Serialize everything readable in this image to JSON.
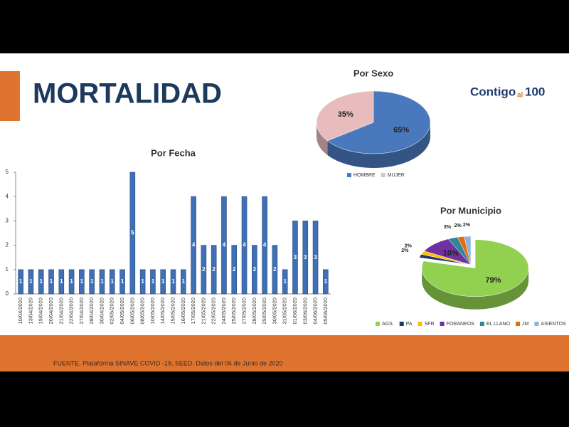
{
  "header": {
    "title": "MORTALIDAD"
  },
  "logo": {
    "word": "Contigo",
    "small": "al",
    "number": "100"
  },
  "footer": {
    "source": "FUENTE. Plataforma SINAVE COVID -19, SEED. Datos del 06 de Junio de 2020"
  },
  "chart_data": [
    {
      "type": "bar",
      "title": "Por Fecha",
      "categories": [
        "10/04/2020",
        "13/04/2020",
        "19/04/2020",
        "20/04/2020",
        "21/04/2020",
        "22/04/2020",
        "27/04/2020",
        "28/04/2020",
        "30/04/2020",
        "02/05/2020",
        "04/05/2020",
        "06/05/2020",
        "08/05/2020",
        "10/05/2020",
        "14/05/2020",
        "15/05/2020",
        "16/05/2020",
        "17/05/2020",
        "21/05/2020",
        "22/05/2020",
        "24/05/2020",
        "25/05/2020",
        "27/05/2020",
        "28/05/2020",
        "29/05/2020",
        "30/05/2020",
        "31/05/2020",
        "01/06/2020",
        "03/06/2020",
        "04/06/2020",
        "05/06/2020"
      ],
      "values": [
        1,
        1,
        1,
        1,
        1,
        1,
        1,
        1,
        1,
        1,
        1,
        5,
        1,
        1,
        1,
        1,
        1,
        4,
        2,
        2,
        4,
        2,
        4,
        2,
        4,
        2,
        1,
        3,
        3,
        3,
        1
      ],
      "color": "#3f6fb5",
      "ylim": [
        0,
        5
      ],
      "yticks": [
        0,
        1,
        2,
        3,
        4,
        5
      ],
      "grid": false
    },
    {
      "type": "pie",
      "title": "Por Sexo",
      "categories": [
        "HOMBRE",
        "MUJER"
      ],
      "values": [
        65,
        35
      ],
      "value_labels": [
        "65%",
        "35%"
      ],
      "colors": [
        "#4a78bd",
        "#e8bcbc"
      ]
    },
    {
      "type": "pie",
      "title": "Por Municipio",
      "categories": [
        "AGS.",
        "PA",
        "SFR",
        "FORANEOS",
        "EL LLANO",
        "JM",
        "ASIENTOS"
      ],
      "values": [
        79,
        2,
        2,
        10,
        3,
        2,
        2
      ],
      "value_labels": [
        "79%",
        "2%",
        "2%",
        "10%",
        "3%",
        "2%",
        "2%"
      ],
      "colors": [
        "#92d050",
        "#1f3864",
        "#ffc000",
        "#7030a0",
        "#31859c",
        "#e46c0a",
        "#8db3e2"
      ]
    }
  ]
}
